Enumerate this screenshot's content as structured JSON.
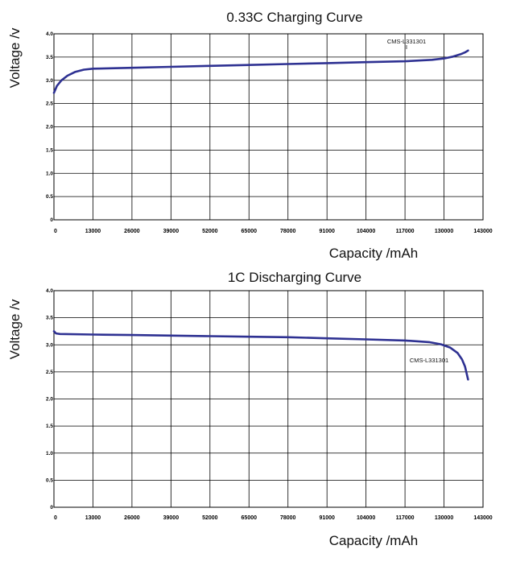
{
  "chart_data": [
    {
      "type": "line",
      "title": "0.33C Charging Curve",
      "xlabel": "Capacity /mAh",
      "ylabel": "Voltage /v",
      "xlim": [
        0,
        143000
      ],
      "ylim": [
        0,
        4.0
      ],
      "grid": true,
      "x_ticks": [
        "0",
        "13000",
        "26000",
        "39000",
        "52000",
        "65000",
        "78000",
        "91000",
        "104000",
        "117000",
        "130000",
        "143000"
      ],
      "y_ticks": [
        "0",
        "0.5",
        "1.0",
        "1.5",
        "2.0",
        "2.5",
        "3.0",
        "3.5",
        "4.0"
      ],
      "annotation": {
        "text": "CMS-L331301",
        "x": 117000,
        "y": 3.4
      },
      "series": [
        {
          "color": "#2e3192",
          "points": [
            [
              0,
              2.73
            ],
            [
              1000,
              2.88
            ],
            [
              2500,
              3.0
            ],
            [
              4500,
              3.1
            ],
            [
              7000,
              3.18
            ],
            [
              10000,
              3.23
            ],
            [
              13000,
              3.25
            ],
            [
              26000,
              3.27
            ],
            [
              39000,
              3.29
            ],
            [
              52000,
              3.31
            ],
            [
              65000,
              3.33
            ],
            [
              78000,
              3.35
            ],
            [
              91000,
              3.37
            ],
            [
              104000,
              3.39
            ],
            [
              117000,
              3.41
            ],
            [
              126000,
              3.44
            ],
            [
              130000,
              3.47
            ],
            [
              133000,
              3.51
            ],
            [
              135500,
              3.56
            ],
            [
              137000,
              3.6
            ],
            [
              138000,
              3.64
            ]
          ]
        }
      ]
    },
    {
      "type": "line",
      "title": "1C Discharging Curve",
      "xlabel": "Capacity /mAh",
      "ylabel": "Voltage /v",
      "xlim": [
        0,
        143000
      ],
      "ylim": [
        0,
        4.0
      ],
      "grid": true,
      "x_ticks": [
        "0",
        "13000",
        "26000",
        "39000",
        "52000",
        "65000",
        "78000",
        "91000",
        "104000",
        "117000",
        "130000",
        "143000"
      ],
      "y_ticks": [
        "0",
        "0.5",
        "1.0",
        "1.5",
        "2.0",
        "2.5",
        "3.0",
        "3.5",
        "4.0"
      ],
      "annotation": {
        "text": "CMS-L331301",
        "x": 117000,
        "y": 2.7
      },
      "series": [
        {
          "color": "#2e3192",
          "points": [
            [
              0,
              3.25
            ],
            [
              700,
              3.21
            ],
            [
              2000,
              3.2
            ],
            [
              13000,
              3.19
            ],
            [
              26000,
              3.18
            ],
            [
              39000,
              3.17
            ],
            [
              52000,
              3.16
            ],
            [
              65000,
              3.15
            ],
            [
              78000,
              3.14
            ],
            [
              91000,
              3.12
            ],
            [
              104000,
              3.1
            ],
            [
              117000,
              3.08
            ],
            [
              125000,
              3.05
            ],
            [
              129000,
              3.01
            ],
            [
              132000,
              2.95
            ],
            [
              134500,
              2.85
            ],
            [
              136000,
              2.73
            ],
            [
              137000,
              2.6
            ],
            [
              137500,
              2.48
            ],
            [
              138000,
              2.36
            ]
          ]
        }
      ]
    }
  ]
}
